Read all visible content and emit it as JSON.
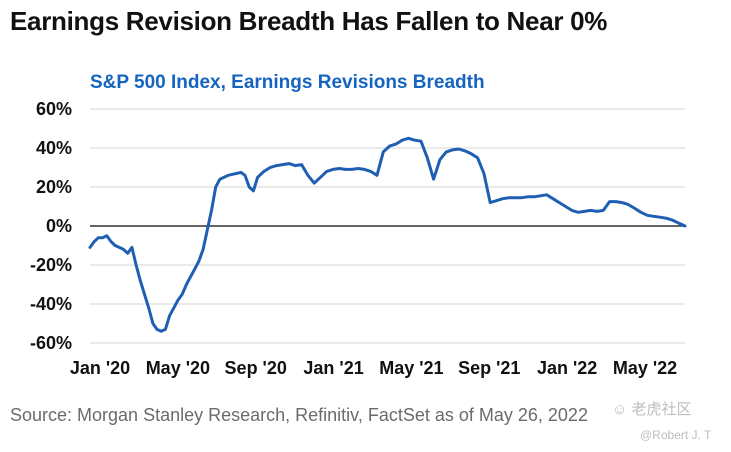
{
  "page": {
    "title": "Earnings Revision Breadth Has Fallen to Near 0%",
    "source": "Source: Morgan Stanley Research, Refinitiv, FactSet as of May 26, 2022",
    "watermark": "☺ 老虎社区",
    "watermark_user": "@Robert J. T"
  },
  "chart_data": {
    "type": "line",
    "title": "S&P 500 Index, Earnings Revisions Breadth",
    "xlabel": "",
    "ylabel": "",
    "ylim": [
      -60,
      60
    ],
    "y_ticks": [
      60,
      40,
      20,
      0,
      -20,
      -40,
      -60
    ],
    "y_tick_labels": [
      "60%",
      "40%",
      "20%",
      "0%",
      "-20%",
      "-40%",
      "-60%"
    ],
    "x_tick_labels": [
      "Jan '20",
      "May '20",
      "Sep '20",
      "Jan '21",
      "May '21",
      "Sep '21",
      "Jan '22",
      "May '22"
    ],
    "line_color": "#1f5fb3",
    "zero_line_color": "#333333",
    "grid_color": "#d4d4d4",
    "series": [
      {
        "name": "Earnings Revisions Breadth",
        "x": [
          0,
          0.2,
          0.4,
          0.6,
          0.8,
          1.0,
          1.2,
          1.4,
          1.6,
          1.8,
          2.0,
          2.2,
          2.4,
          2.6,
          2.8,
          3.0,
          3.2,
          3.4,
          3.6,
          3.8,
          4.0,
          4.2,
          4.4,
          4.6,
          4.8,
          5.0,
          5.2,
          5.4,
          5.6,
          5.8,
          6.0,
          6.2,
          6.4,
          6.6,
          6.8,
          7.0,
          7.2,
          7.4,
          7.6,
          7.8,
          8.0,
          8.3,
          8.6,
          8.9,
          9.2,
          9.5,
          9.8,
          10.1,
          10.4,
          10.7,
          11.0,
          11.3,
          11.6,
          11.9,
          12.2,
          12.5,
          12.8,
          13.1,
          13.4,
          13.7,
          14.0,
          14.3,
          14.6,
          14.9,
          15.2,
          15.5,
          15.8,
          16.1,
          16.4,
          16.7,
          17.0,
          17.3,
          17.6,
          17.9,
          18.2,
          18.5,
          18.8,
          19.1,
          19.4,
          19.7,
          20.0,
          20.3,
          20.6,
          20.9,
          21.2,
          21.5,
          21.8,
          22.1,
          22.4,
          22.7,
          23.0,
          23.3,
          23.6,
          23.9,
          24.2,
          24.5,
          24.8,
          25.1,
          25.4,
          25.7,
          26.0,
          26.3,
          26.6,
          26.9,
          27.2,
          27.5,
          27.8,
          28.1,
          28.4
        ],
        "values": [
          -11,
          -8,
          -6,
          -6,
          -5,
          -8,
          -10,
          -11,
          -12,
          -14,
          -11,
          -20,
          -28,
          -35,
          -42,
          -50,
          -53,
          -54,
          -53,
          -46,
          -42,
          -38,
          -35,
          -30,
          -26,
          -22,
          -18,
          -12,
          -2,
          8,
          20,
          24,
          25,
          26,
          26.5,
          27,
          27.5,
          26,
          20,
          18,
          25,
          28,
          30,
          31,
          31.5,
          32,
          31,
          31.5,
          26,
          22,
          25,
          28,
          29,
          29.5,
          29,
          29,
          29.5,
          29,
          28,
          26,
          38,
          41,
          42,
          44,
          45,
          44,
          43.5,
          35,
          24,
          34,
          38,
          39,
          39.5,
          38.5,
          37,
          35,
          27,
          12,
          13,
          14,
          14.5,
          14.5,
          14.5,
          15,
          15,
          15.5,
          16,
          14,
          12,
          10,
          8,
          7,
          7.5,
          8,
          7.5,
          8,
          12.5,
          12.5,
          12,
          11,
          9,
          7,
          5.5,
          5,
          4.5,
          4,
          3,
          1.5,
          0
        ]
      }
    ]
  }
}
